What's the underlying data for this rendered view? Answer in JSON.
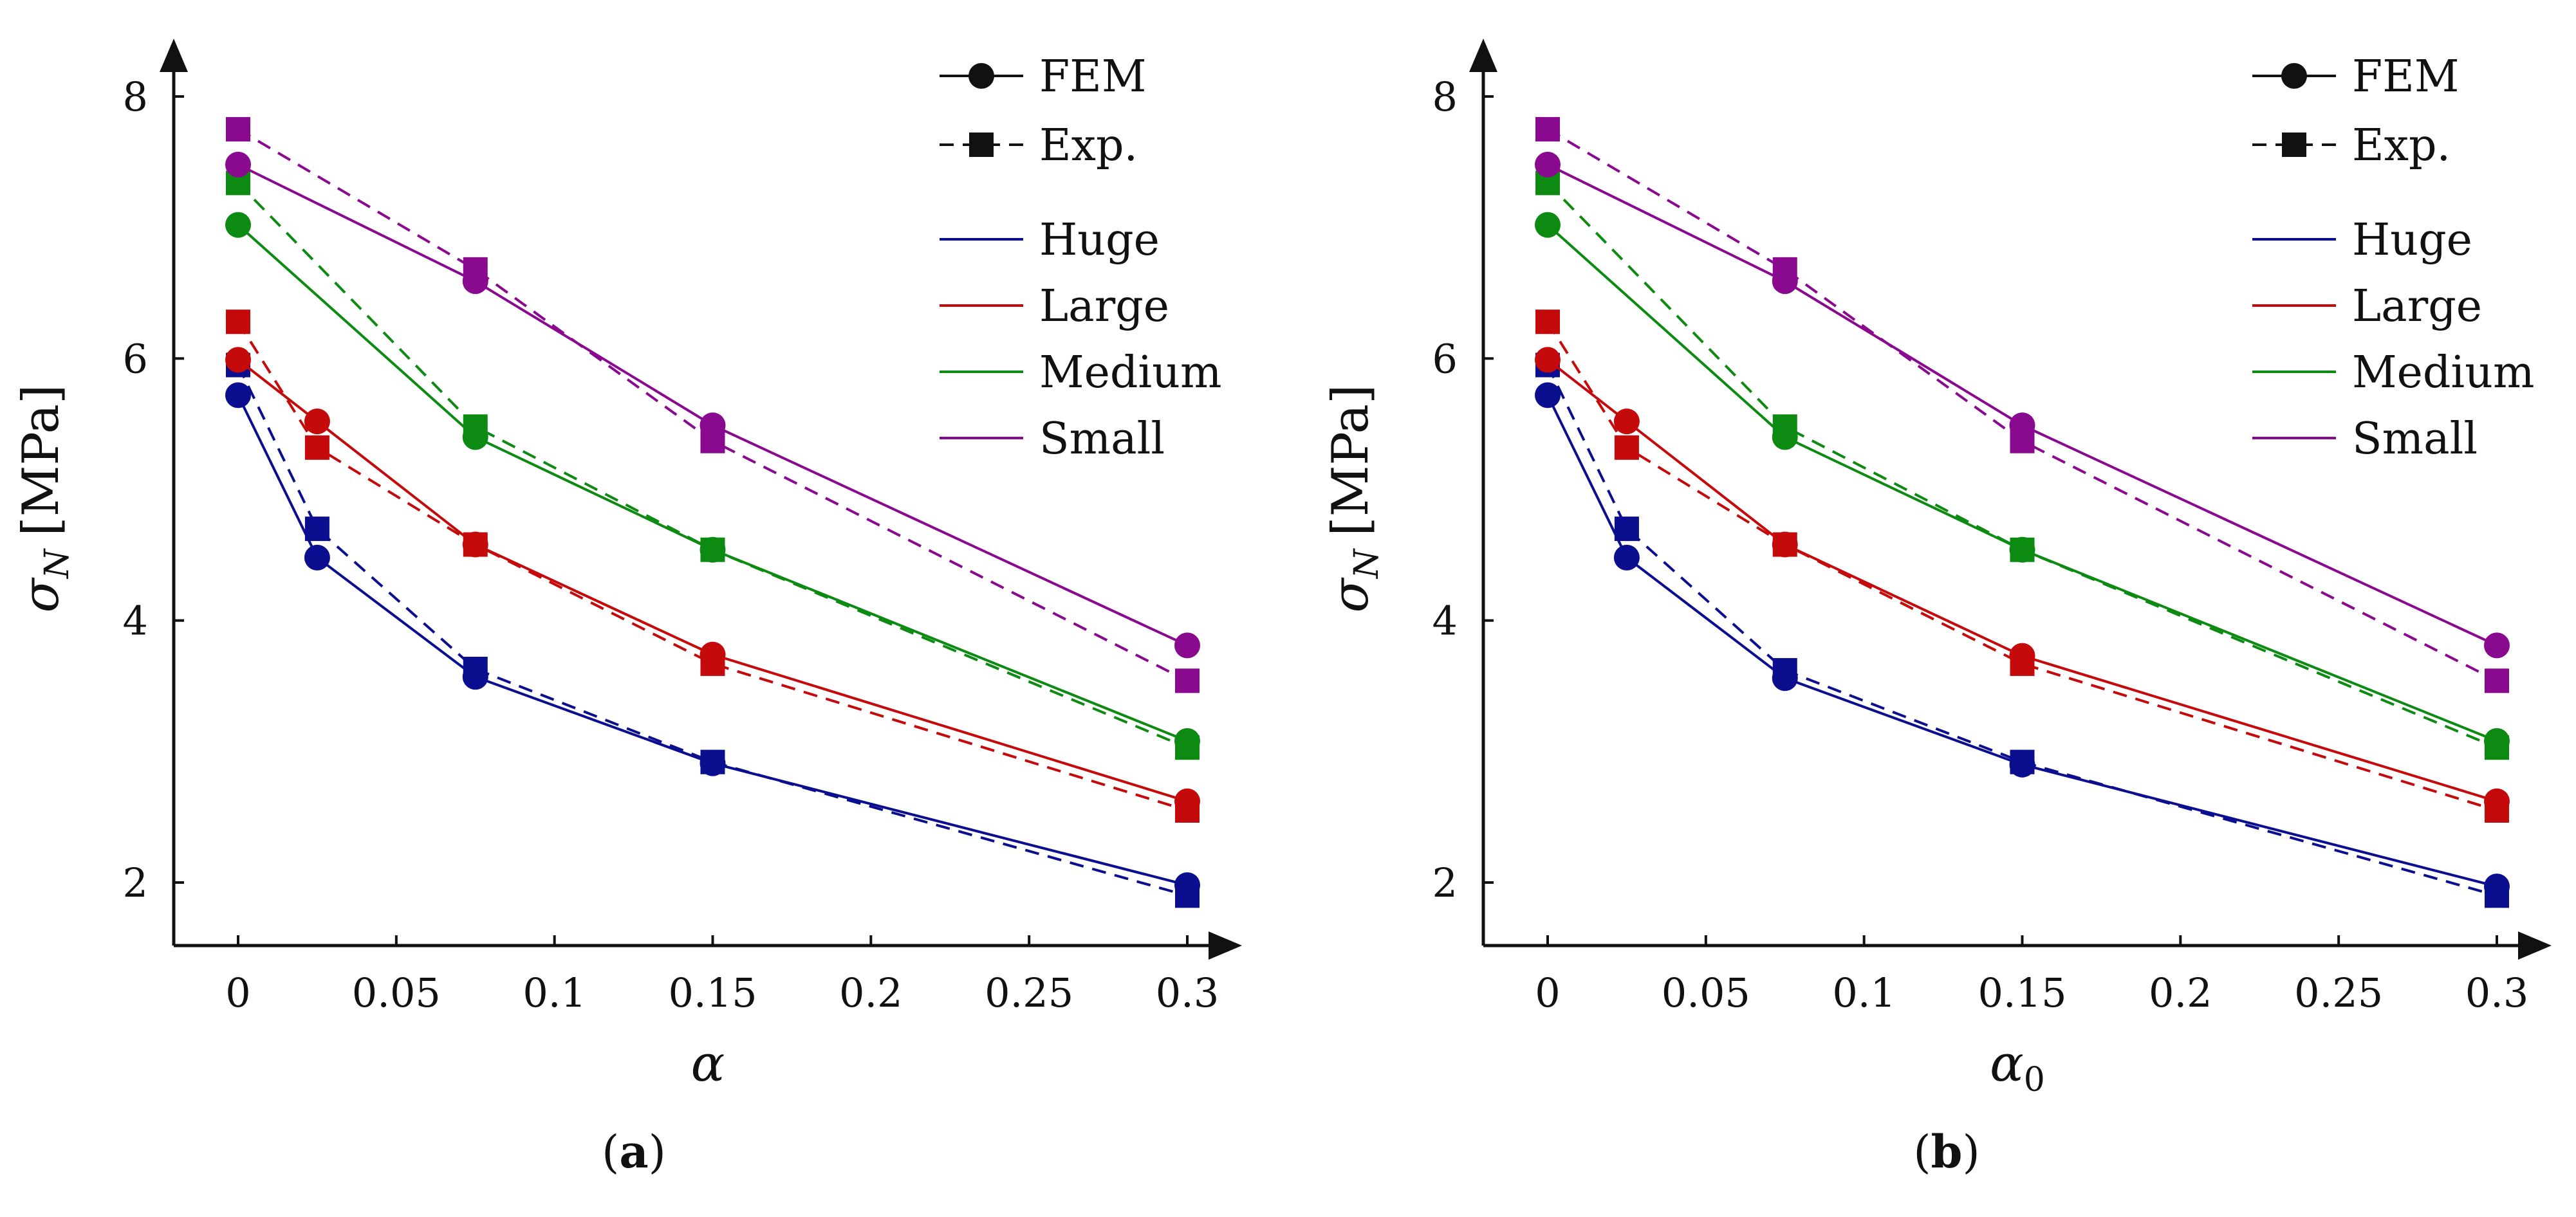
{
  "colors": {
    "Huge": "#0b0f8f",
    "Large": "#c40a0a",
    "Medium": "#0d8a12",
    "Small": "#8a0a8f",
    "axis": "#111111"
  },
  "legend": {
    "fem": "FEM",
    "exp": "Exp.",
    "sizes": [
      "Huge",
      "Large",
      "Medium",
      "Small"
    ]
  },
  "chart_data": [
    {
      "panel": "a",
      "type": "line",
      "caption": "a",
      "xlabel": "α",
      "ylabel_symbol": "σ",
      "ylabel_sub": "N",
      "ylabel_unit": "[MPa]",
      "x": [
        0,
        0.025,
        0.075,
        0.15,
        0.3
      ],
      "xlim": [
        -0.02,
        0.32
      ],
      "ylim": [
        1.5,
        8.5
      ],
      "xticks": [
        0,
        0.05,
        0.1,
        0.15,
        0.2,
        0.25,
        0.3
      ],
      "xtick_labels": [
        "0",
        "0.05",
        "0.1",
        "0.15",
        "0.2",
        "0.25",
        "0.3"
      ],
      "yticks": [
        2,
        4,
        6,
        8
      ],
      "ytick_labels": [
        "2",
        "4",
        "6",
        "8"
      ],
      "series": [
        {
          "name": "Huge",
          "kind": "FEM",
          "values": [
            5.72,
            4.48,
            3.57,
            2.91,
            1.98
          ]
        },
        {
          "name": "Huge",
          "kind": "Exp.",
          "values": [
            5.95,
            4.7,
            3.63,
            2.92,
            1.9
          ]
        },
        {
          "name": "Large",
          "kind": "FEM",
          "values": [
            5.99,
            5.52,
            4.58,
            3.74,
            2.62
          ]
        },
        {
          "name": "Large",
          "kind": "Exp.",
          "values": [
            6.28,
            5.32,
            4.58,
            3.67,
            2.55
          ]
        },
        {
          "name": "Medium",
          "kind": "FEM",
          "values": [
            7.02,
            7.02,
            5.4,
            4.54,
            3.08
          ],
          "x": [
            0,
            0,
            0.075,
            0.15,
            0.3
          ]
        },
        {
          "name": "Medium",
          "kind": "Exp.",
          "values": [
            7.34,
            7.34,
            5.48,
            4.54,
            3.03
          ],
          "x": [
            0,
            0,
            0.075,
            0.15,
            0.3
          ]
        },
        {
          "name": "Small",
          "kind": "FEM",
          "values": [
            7.48,
            7.48,
            6.59,
            5.49,
            3.81
          ],
          "x": [
            0,
            0,
            0.075,
            0.15,
            0.3
          ]
        },
        {
          "name": "Small",
          "kind": "Exp.",
          "values": [
            7.75,
            7.75,
            6.68,
            5.37,
            3.54
          ],
          "x": [
            0,
            0,
            0.075,
            0.15,
            0.3
          ]
        }
      ]
    },
    {
      "panel": "b",
      "type": "line",
      "caption": "b",
      "xlabel": "α",
      "xlabel_sub": "0",
      "ylabel_symbol": "σ",
      "ylabel_sub": "N",
      "ylabel_unit": "[MPa]",
      "x": [
        0,
        0.025,
        0.075,
        0.15,
        0.3
      ],
      "xlim": [
        -0.02,
        0.32
      ],
      "ylim": [
        1.5,
        8.5
      ],
      "xticks": [
        0,
        0.05,
        0.1,
        0.15,
        0.2,
        0.25,
        0.3
      ],
      "xtick_labels": [
        "0",
        "0.05",
        "0.1",
        "0.15",
        "0.2",
        "0.25",
        "0.3"
      ],
      "yticks": [
        2,
        4,
        6,
        8
      ],
      "ytick_labels": [
        "2",
        "4",
        "6",
        "8"
      ],
      "series": [
        {
          "name": "Huge",
          "kind": "FEM",
          "values": [
            5.72,
            4.48,
            3.56,
            2.9,
            1.97
          ]
        },
        {
          "name": "Huge",
          "kind": "Exp.",
          "values": [
            5.95,
            4.7,
            3.62,
            2.92,
            1.9
          ]
        },
        {
          "name": "Large",
          "kind": "FEM",
          "values": [
            5.99,
            5.52,
            4.58,
            3.73,
            2.62
          ]
        },
        {
          "name": "Large",
          "kind": "Exp.",
          "values": [
            6.28,
            5.32,
            4.58,
            3.67,
            2.55
          ]
        },
        {
          "name": "Medium",
          "kind": "FEM",
          "values": [
            7.02,
            7.02,
            5.4,
            4.54,
            3.08
          ],
          "x": [
            0,
            0,
            0.075,
            0.15,
            0.3
          ]
        },
        {
          "name": "Medium",
          "kind": "Exp.",
          "values": [
            7.34,
            7.34,
            5.48,
            4.54,
            3.03
          ],
          "x": [
            0,
            0,
            0.075,
            0.15,
            0.3
          ]
        },
        {
          "name": "Small",
          "kind": "FEM",
          "values": [
            7.48,
            7.48,
            6.59,
            5.49,
            3.81
          ],
          "x": [
            0,
            0,
            0.075,
            0.15,
            0.3
          ]
        },
        {
          "name": "Small",
          "kind": "Exp.",
          "values": [
            7.75,
            7.75,
            6.68,
            5.37,
            3.54
          ],
          "x": [
            0,
            0,
            0.075,
            0.15,
            0.3
          ]
        }
      ]
    }
  ]
}
